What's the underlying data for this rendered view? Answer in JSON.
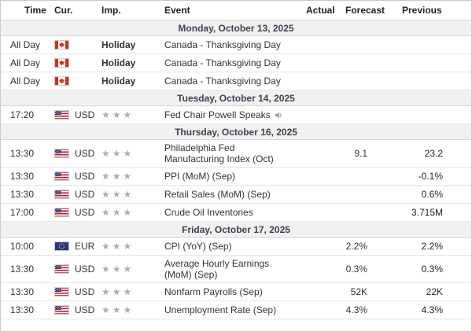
{
  "table": {
    "columns": [
      "Time",
      "Cur.",
      "Imp.",
      "Event",
      "Actual",
      "Forecast",
      "Previous"
    ],
    "sections": [
      {
        "date": "Monday, October 13, 2025",
        "rows": [
          {
            "time": "All Day",
            "flag": "canada",
            "currency": "",
            "importance": "Holiday",
            "event": "Canada - Thanksgiving Day",
            "speaker": false,
            "actual": "",
            "forecast": "",
            "previous": ""
          },
          {
            "time": "All Day",
            "flag": "canada",
            "currency": "",
            "importance": "Holiday",
            "event": "Canada - Thanksgiving Day",
            "speaker": false,
            "actual": "",
            "forecast": "",
            "previous": ""
          },
          {
            "time": "All Day",
            "flag": "canada",
            "currency": "",
            "importance": "Holiday",
            "event": "Canada - Thanksgiving Day",
            "speaker": false,
            "actual": "",
            "forecast": "",
            "previous": ""
          }
        ]
      },
      {
        "date": "Tuesday, October 14, 2025",
        "rows": [
          {
            "time": "17:20",
            "flag": "us",
            "currency": "USD",
            "importance": 3,
            "event": "Fed Chair Powell Speaks",
            "speaker": true,
            "actual": "",
            "forecast": "",
            "previous": ""
          }
        ]
      },
      {
        "date": "Thursday, October 16, 2025",
        "rows": [
          {
            "time": "13:30",
            "flag": "us",
            "currency": "USD",
            "importance": 3,
            "event": "Philadelphia Fed Manufacturing Index (Oct)",
            "speaker": false,
            "actual": "",
            "forecast": "9.1",
            "previous": "23.2"
          },
          {
            "time": "13:30",
            "flag": "us",
            "currency": "USD",
            "importance": 3,
            "event": "PPI (MoM) (Sep)",
            "speaker": false,
            "actual": "",
            "forecast": "",
            "previous": "-0.1%"
          },
          {
            "time": "13:30",
            "flag": "us",
            "currency": "USD",
            "importance": 3,
            "event": "Retail Sales (MoM) (Sep)",
            "speaker": false,
            "actual": "",
            "forecast": "",
            "previous": "0.6%"
          },
          {
            "time": "17:00",
            "flag": "us",
            "currency": "USD",
            "importance": 3,
            "event": "Crude Oil Inventories",
            "speaker": false,
            "actual": "",
            "forecast": "",
            "previous": "3.715M"
          }
        ]
      },
      {
        "date": "Friday, October 17, 2025",
        "rows": [
          {
            "time": "10:00",
            "flag": "eu",
            "currency": "EUR",
            "importance": 3,
            "event": "CPI (YoY) (Sep)",
            "speaker": false,
            "actual": "",
            "forecast": "2.2%",
            "previous": "2.2%"
          },
          {
            "time": "13:30",
            "flag": "us",
            "currency": "USD",
            "importance": 3,
            "event": "Average Hourly Earnings (MoM) (Sep)",
            "speaker": false,
            "actual": "",
            "forecast": "0.3%",
            "previous": "0.3%"
          },
          {
            "time": "13:30",
            "flag": "us",
            "currency": "USD",
            "importance": 3,
            "event": "Nonfarm Payrolls (Sep)",
            "speaker": false,
            "actual": "",
            "forecast": "52K",
            "previous": "22K"
          },
          {
            "time": "13:30",
            "flag": "us",
            "currency": "USD",
            "importance": 3,
            "event": "Unemployment Rate (Sep)",
            "speaker": false,
            "actual": "",
            "forecast": "4.3%",
            "previous": "4.3%"
          }
        ]
      }
    ]
  },
  "icons": {
    "star": "★",
    "speaker": "speaker-icon",
    "flags": [
      "canada-flag-icon",
      "us-flag-icon",
      "eu-flag-icon"
    ]
  },
  "colors": {
    "star_gray": "#adadad",
    "date_row_bg": "#f1f1f1",
    "date_border": "#d4d4d4",
    "date_text": "#3c4450",
    "row_border": "#e6e6e6",
    "text": "#333333",
    "canada_red": "#d52b1e",
    "us_red": "#b22234",
    "us_blue": "#3c3b6e",
    "eu_blue": "#26348b",
    "eu_yellow": "#ffcc00"
  }
}
